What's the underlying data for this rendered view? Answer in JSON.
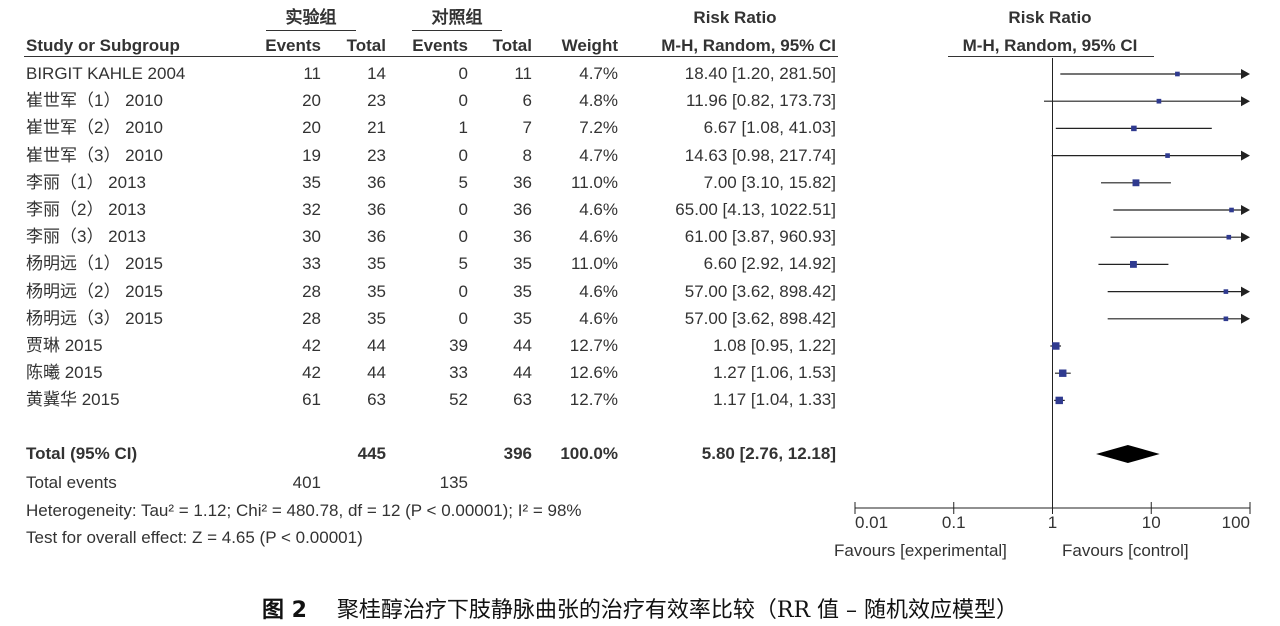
{
  "header": {
    "group_exp": "实验组",
    "group_ctrl": "对照组",
    "rr_title": "Risk Ratio",
    "rr_subtitle": "M-H, Random, 95% CI",
    "plot_title": "Risk Ratio",
    "plot_subtitle": "M-H, Random, 95% CI",
    "col_study": "Study or Subgroup",
    "col_events_exp": "Events",
    "col_total_exp": "Total",
    "col_events_ctrl": "Events",
    "col_total_ctrl": "Total",
    "col_weight": "Weight"
  },
  "rows": [
    {
      "study": "BIRGIT KAHLE 2004",
      "ee": "11",
      "te": "14",
      "ec": "0",
      "tc": "11",
      "w": "4.7%",
      "ci": "18.40 [1.20, 281.50]"
    },
    {
      "study": "崔世军（1）  2010",
      "ee": "20",
      "te": "23",
      "ec": "0",
      "tc": "6",
      "w": "4.8%",
      "ci": "11.96 [0.82, 173.73]"
    },
    {
      "study": "崔世军（2）  2010",
      "ee": "20",
      "te": "21",
      "ec": "1",
      "tc": "7",
      "w": "7.2%",
      "ci": "6.67 [1.08, 41.03]"
    },
    {
      "study": "崔世军（3）  2010",
      "ee": "19",
      "te": "23",
      "ec": "0",
      "tc": "8",
      "w": "4.7%",
      "ci": "14.63 [0.98, 217.74]"
    },
    {
      "study": "李丽（1）  2013",
      "ee": "35",
      "te": "36",
      "ec": "5",
      "tc": "36",
      "w": "11.0%",
      "ci": "7.00 [3.10, 15.82]"
    },
    {
      "study": "李丽（2）  2013",
      "ee": "32",
      "te": "36",
      "ec": "0",
      "tc": "36",
      "w": "4.6%",
      "ci": "65.00 [4.13, 1022.51]"
    },
    {
      "study": "李丽（3）  2013",
      "ee": "30",
      "te": "36",
      "ec": "0",
      "tc": "36",
      "w": "4.6%",
      "ci": "61.00 [3.87, 960.93]"
    },
    {
      "study": "杨明远（1）  2015",
      "ee": "33",
      "te": "35",
      "ec": "5",
      "tc": "35",
      "w": "11.0%",
      "ci": "6.60 [2.92, 14.92]"
    },
    {
      "study": "杨明远（2）  2015",
      "ee": "28",
      "te": "35",
      "ec": "0",
      "tc": "35",
      "w": "4.6%",
      "ci": "57.00 [3.62, 898.42]"
    },
    {
      "study": "杨明远（3）  2015",
      "ee": "28",
      "te": "35",
      "ec": "0",
      "tc": "35",
      "w": "4.6%",
      "ci": "57.00 [3.62, 898.42]"
    },
    {
      "study": "贾琳  2015",
      "ee": "42",
      "te": "44",
      "ec": "39",
      "tc": "44",
      "w": "12.7%",
      "ci": "1.08 [0.95, 1.22]"
    },
    {
      "study": "陈曦  2015",
      "ee": "42",
      "te": "44",
      "ec": "33",
      "tc": "44",
      "w": "12.6%",
      "ci": "1.27 [1.06, 1.53]"
    },
    {
      "study": "黄冀华  2015",
      "ee": "61",
      "te": "63",
      "ec": "52",
      "tc": "63",
      "w": "12.7%",
      "ci": "1.17 [1.04, 1.33]"
    }
  ],
  "total": {
    "label": "Total (95% CI)",
    "te": "445",
    "tc": "396",
    "w": "100.0%",
    "ci": "5.80 [2.76, 12.18]"
  },
  "total_events": {
    "label": "Total events",
    "exp": "401",
    "ctrl": "135"
  },
  "heterogeneity": "Heterogeneity: Tau² = 1.12; Chi² = 480.78, df = 12 (P < 0.00001); I² = 98%",
  "overall_effect": "Test for overall effect: Z = 4.65 (P < 0.00001)",
  "axis": {
    "ticks": [
      "0.01",
      "0.1",
      "1",
      "10",
      "100"
    ],
    "favours_left": "Favours [experimental]",
    "favours_right": "Favours [control]"
  },
  "caption": {
    "fig": "图 2",
    "text": "聚桂醇治疗下肢静脉曲张的治疗有效率比较（RR 值 – 随机效应模型）"
  },
  "colors": {
    "marker": "#2f3a8f",
    "line": "#222222",
    "diamond": "#000000"
  },
  "chart_data": {
    "type": "forest",
    "scale": "log",
    "xlim": [
      0.01,
      100
    ],
    "ticks": [
      0.01,
      0.1,
      1,
      10,
      100
    ],
    "studies": [
      {
        "study": "BIRGIT KAHLE 2004",
        "rr": 18.4,
        "lo": 1.2,
        "hi": 281.5,
        "weight": 4.7
      },
      {
        "study": "崔世军（1）  2010",
        "rr": 11.96,
        "lo": 0.82,
        "hi": 173.73,
        "weight": 4.8
      },
      {
        "study": "崔世军（2）  2010",
        "rr": 6.67,
        "lo": 1.08,
        "hi": 41.03,
        "weight": 7.2
      },
      {
        "study": "崔世军（3）  2010",
        "rr": 14.63,
        "lo": 0.98,
        "hi": 217.74,
        "weight": 4.7
      },
      {
        "study": "李丽（1）  2013",
        "rr": 7.0,
        "lo": 3.1,
        "hi": 15.82,
        "weight": 11.0
      },
      {
        "study": "李丽（2）  2013",
        "rr": 65.0,
        "lo": 4.13,
        "hi": 1022.51,
        "weight": 4.6
      },
      {
        "study": "李丽（3）  2013",
        "rr": 61.0,
        "lo": 3.87,
        "hi": 960.93,
        "weight": 4.6
      },
      {
        "study": "杨明远（1）  2015",
        "rr": 6.6,
        "lo": 2.92,
        "hi": 14.92,
        "weight": 11.0
      },
      {
        "study": "杨明远（2）  2015",
        "rr": 57.0,
        "lo": 3.62,
        "hi": 898.42,
        "weight": 4.6
      },
      {
        "study": "杨明远（3）  2015",
        "rr": 57.0,
        "lo": 3.62,
        "hi": 898.42,
        "weight": 4.6
      },
      {
        "study": "贾琳  2015",
        "rr": 1.08,
        "lo": 0.95,
        "hi": 1.22,
        "weight": 12.7
      },
      {
        "study": "陈曦  2015",
        "rr": 1.27,
        "lo": 1.06,
        "hi": 1.53,
        "weight": 12.6
      },
      {
        "study": "黄冀华  2015",
        "rr": 1.17,
        "lo": 1.04,
        "hi": 1.33,
        "weight": 12.7
      }
    ],
    "pooled": {
      "rr": 5.8,
      "lo": 2.76,
      "hi": 12.18
    }
  }
}
